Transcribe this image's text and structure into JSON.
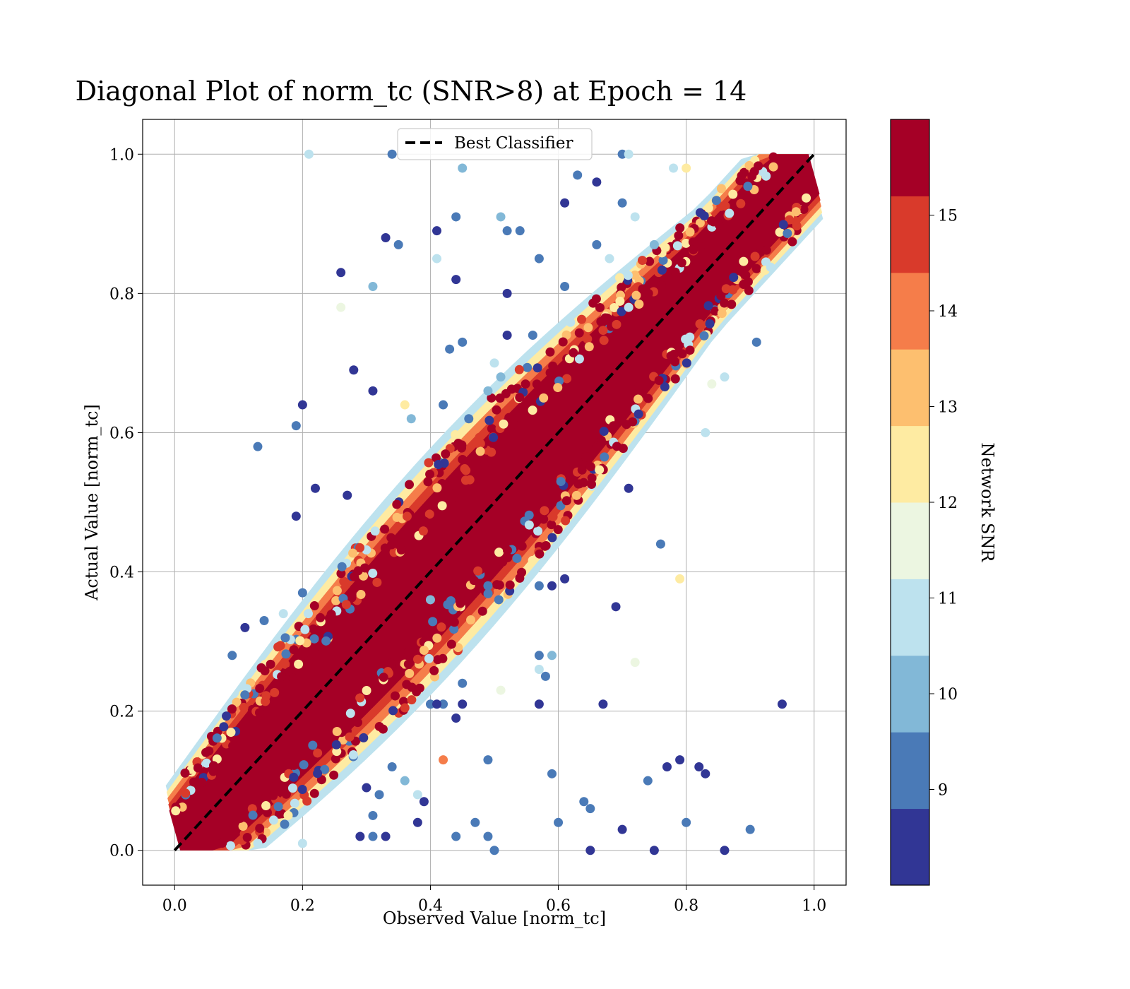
{
  "chart_data": {
    "type": "scatter",
    "title": "Diagonal Plot of norm_tc (SNR>8) at Epoch = 14",
    "xlabel": "Observed Value [norm_tc]",
    "ylabel": "Actual Value [norm_tc]",
    "xlim": [
      -0.05,
      1.05
    ],
    "ylim": [
      -0.05,
      1.05
    ],
    "xticks": [
      "0.0",
      "0.2",
      "0.4",
      "0.6",
      "0.8",
      "1.0"
    ],
    "yticks": [
      "0.0",
      "0.2",
      "0.4",
      "0.6",
      "0.8",
      "1.0"
    ],
    "xtick_values": [
      0.0,
      0.2,
      0.4,
      0.6,
      0.8,
      1.0
    ],
    "ytick_values": [
      0.0,
      0.2,
      0.4,
      0.6,
      0.8,
      1.0
    ],
    "grid": true,
    "legend": {
      "label": "Best Classifier",
      "placement": "upper center"
    },
    "reference_line": {
      "name": "Best Classifier",
      "x": [
        0.0,
        1.0
      ],
      "y": [
        0.0,
        1.0
      ],
      "style": "dashed",
      "color": "#000000"
    },
    "colorbar": {
      "label": "Network SNR",
      "range": [
        8,
        16
      ],
      "ticks": [
        "9",
        "10",
        "11",
        "12",
        "13",
        "14",
        "15"
      ],
      "tick_values": [
        9,
        10,
        11,
        12,
        13,
        14,
        15
      ],
      "colors": [
        "#313695",
        "#4a7ab7",
        "#82b8d7",
        "#bde2ee",
        "#ecf6e1",
        "#feeba2",
        "#fdbf6f",
        "#f57d4a",
        "#d93a2b",
        "#a50026"
      ]
    },
    "main_band": {
      "description": "dense cloud along y = x",
      "snr_dominant": 16
    },
    "outliers": [
      {
        "x": 0.21,
        "y": 1.0,
        "snr": 11
      },
      {
        "x": 0.34,
        "y": 1.0,
        "snr": 9
      },
      {
        "x": 0.45,
        "y": 0.98,
        "snr": 10
      },
      {
        "x": 0.44,
        "y": 0.91,
        "snr": 9
      },
      {
        "x": 0.41,
        "y": 0.89,
        "snr": 8.5
      },
      {
        "x": 0.33,
        "y": 0.88,
        "snr": 8.5
      },
      {
        "x": 0.35,
        "y": 0.87,
        "snr": 9
      },
      {
        "x": 0.26,
        "y": 0.83,
        "snr": 8.5
      },
      {
        "x": 0.31,
        "y": 0.81,
        "snr": 10
      },
      {
        "x": 0.41,
        "y": 0.85,
        "snr": 11
      },
      {
        "x": 0.44,
        "y": 0.82,
        "snr": 8.5
      },
      {
        "x": 0.51,
        "y": 0.91,
        "snr": 10
      },
      {
        "x": 0.52,
        "y": 0.89,
        "snr": 9
      },
      {
        "x": 0.54,
        "y": 0.89,
        "snr": 9
      },
      {
        "x": 0.57,
        "y": 0.85,
        "snr": 9
      },
      {
        "x": 0.52,
        "y": 0.8,
        "snr": 8.5
      },
      {
        "x": 0.61,
        "y": 0.93,
        "snr": 8.5
      },
      {
        "x": 0.63,
        "y": 0.97,
        "snr": 9
      },
      {
        "x": 0.66,
        "y": 0.96,
        "snr": 8.5
      },
      {
        "x": 0.26,
        "y": 0.78,
        "snr": 11.5
      },
      {
        "x": 0.45,
        "y": 0.73,
        "snr": 9
      },
      {
        "x": 0.43,
        "y": 0.72,
        "snr": 9
      },
      {
        "x": 0.28,
        "y": 0.69,
        "snr": 8.5
      },
      {
        "x": 0.31,
        "y": 0.66,
        "snr": 8.5
      },
      {
        "x": 0.2,
        "y": 0.64,
        "snr": 8.5
      },
      {
        "x": 0.19,
        "y": 0.61,
        "snr": 9
      },
      {
        "x": 0.13,
        "y": 0.58,
        "snr": 9
      },
      {
        "x": 0.22,
        "y": 0.52,
        "snr": 8.5
      },
      {
        "x": 0.19,
        "y": 0.48,
        "snr": 8.5
      },
      {
        "x": 0.27,
        "y": 0.51,
        "snr": 8.5
      },
      {
        "x": 0.36,
        "y": 0.64,
        "snr": 12.5
      },
      {
        "x": 0.37,
        "y": 0.62,
        "snr": 10
      },
      {
        "x": 0.42,
        "y": 0.64,
        "snr": 9
      },
      {
        "x": 0.71,
        "y": 0.52,
        "snr": 8.5
      },
      {
        "x": 0.76,
        "y": 0.44,
        "snr": 9
      },
      {
        "x": 0.83,
        "y": 0.6,
        "snr": 11
      },
      {
        "x": 0.79,
        "y": 0.39,
        "snr": 12.5
      },
      {
        "x": 0.69,
        "y": 0.35,
        "snr": 8.5
      },
      {
        "x": 0.61,
        "y": 0.39,
        "snr": 8.5
      },
      {
        "x": 0.59,
        "y": 0.38,
        "snr": 8.5
      },
      {
        "x": 0.57,
        "y": 0.38,
        "snr": 9
      },
      {
        "x": 0.72,
        "y": 0.27,
        "snr": 11.5
      },
      {
        "x": 0.57,
        "y": 0.28,
        "snr": 9
      },
      {
        "x": 0.59,
        "y": 0.28,
        "snr": 10
      },
      {
        "x": 0.58,
        "y": 0.25,
        "snr": 9
      },
      {
        "x": 0.57,
        "y": 0.26,
        "snr": 11
      },
      {
        "x": 0.51,
        "y": 0.23,
        "snr": 11.5
      },
      {
        "x": 0.57,
        "y": 0.21,
        "snr": 8.5
      },
      {
        "x": 0.67,
        "y": 0.21,
        "snr": 8.5
      },
      {
        "x": 0.95,
        "y": 0.21,
        "snr": 8.5
      },
      {
        "x": 0.42,
        "y": 0.21,
        "snr": 9
      },
      {
        "x": 0.45,
        "y": 0.24,
        "snr": 9
      },
      {
        "x": 0.4,
        "y": 0.21,
        "snr": 9
      },
      {
        "x": 0.41,
        "y": 0.21,
        "snr": 8.5
      },
      {
        "x": 0.44,
        "y": 0.19,
        "snr": 8.5
      },
      {
        "x": 0.45,
        "y": 0.21,
        "snr": 8.5
      },
      {
        "x": 0.42,
        "y": 0.13,
        "snr": 14
      },
      {
        "x": 0.49,
        "y": 0.13,
        "snr": 9
      },
      {
        "x": 0.59,
        "y": 0.11,
        "snr": 9
      },
      {
        "x": 0.74,
        "y": 0.1,
        "snr": 9
      },
      {
        "x": 0.77,
        "y": 0.12,
        "snr": 8.5
      },
      {
        "x": 0.79,
        "y": 0.13,
        "snr": 8.5
      },
      {
        "x": 0.82,
        "y": 0.12,
        "snr": 8.5
      },
      {
        "x": 0.83,
        "y": 0.11,
        "snr": 8.5
      },
      {
        "x": 0.64,
        "y": 0.07,
        "snr": 9
      },
      {
        "x": 0.65,
        "y": 0.06,
        "snr": 9
      },
      {
        "x": 0.6,
        "y": 0.04,
        "snr": 9
      },
      {
        "x": 0.7,
        "y": 0.03,
        "snr": 8.5
      },
      {
        "x": 0.8,
        "y": 0.04,
        "snr": 9
      },
      {
        "x": 0.9,
        "y": 0.03,
        "snr": 9
      },
      {
        "x": 0.65,
        "y": 0.0,
        "snr": 8.5
      },
      {
        "x": 0.75,
        "y": 0.0,
        "snr": 8.5
      },
      {
        "x": 0.86,
        "y": 0.0,
        "snr": 8.5
      },
      {
        "x": 0.5,
        "y": 0.0,
        "snr": 9
      },
      {
        "x": 0.49,
        "y": 0.02,
        "snr": 9
      },
      {
        "x": 0.47,
        "y": 0.04,
        "snr": 9
      },
      {
        "x": 0.44,
        "y": 0.02,
        "snr": 9
      },
      {
        "x": 0.39,
        "y": 0.07,
        "snr": 8.5
      },
      {
        "x": 0.38,
        "y": 0.08,
        "snr": 11
      },
      {
        "x": 0.38,
        "y": 0.04,
        "snr": 8.5
      },
      {
        "x": 0.33,
        "y": 0.02,
        "snr": 8.5
      },
      {
        "x": 0.31,
        "y": 0.02,
        "snr": 9
      },
      {
        "x": 0.31,
        "y": 0.05,
        "snr": 9
      },
      {
        "x": 0.29,
        "y": 0.02,
        "snr": 8.5
      },
      {
        "x": 0.2,
        "y": 0.01,
        "snr": 11
      },
      {
        "x": 0.13,
        "y": 0.01,
        "snr": 11
      },
      {
        "x": 0.34,
        "y": 0.12,
        "snr": 9
      },
      {
        "x": 0.36,
        "y": 0.1,
        "snr": 10
      },
      {
        "x": 0.32,
        "y": 0.08,
        "snr": 9
      },
      {
        "x": 0.3,
        "y": 0.09,
        "snr": 8.5
      },
      {
        "x": 0.14,
        "y": 0.33,
        "snr": 9
      },
      {
        "x": 0.11,
        "y": 0.32,
        "snr": 8.5
      },
      {
        "x": 0.09,
        "y": 0.28,
        "snr": 9
      },
      {
        "x": 0.17,
        "y": 0.34,
        "snr": 11
      },
      {
        "x": 0.2,
        "y": 0.37,
        "snr": 9
      },
      {
        "x": 0.49,
        "y": 0.38,
        "snr": 9
      },
      {
        "x": 0.4,
        "y": 0.36,
        "snr": 10
      },
      {
        "x": 0.71,
        "y": 0.78,
        "snr": 11
      },
      {
        "x": 0.75,
        "y": 0.87,
        "snr": 10
      },
      {
        "x": 0.72,
        "y": 0.91,
        "snr": 11
      },
      {
        "x": 0.78,
        "y": 0.98,
        "snr": 11
      },
      {
        "x": 0.7,
        "y": 1.0,
        "snr": 9
      },
      {
        "x": 0.71,
        "y": 1.0,
        "snr": 11
      },
      {
        "x": 0.8,
        "y": 0.98,
        "snr": 12.5
      },
      {
        "x": 0.84,
        "y": 0.67,
        "snr": 11.5
      },
      {
        "x": 0.91,
        "y": 0.73,
        "snr": 9
      },
      {
        "x": 0.86,
        "y": 0.68,
        "snr": 11
      },
      {
        "x": 0.51,
        "y": 0.68,
        "snr": 10
      },
      {
        "x": 0.46,
        "y": 0.62,
        "snr": 9
      },
      {
        "x": 0.49,
        "y": 0.66,
        "snr": 10
      },
      {
        "x": 0.5,
        "y": 0.7,
        "snr": 11
      },
      {
        "x": 0.52,
        "y": 0.74,
        "snr": 8.5
      },
      {
        "x": 0.56,
        "y": 0.74,
        "snr": 9
      },
      {
        "x": 0.61,
        "y": 0.81,
        "snr": 9
      },
      {
        "x": 0.66,
        "y": 0.87,
        "snr": 9
      },
      {
        "x": 0.68,
        "y": 0.85,
        "snr": 11
      },
      {
        "x": 0.7,
        "y": 0.93,
        "snr": 9
      }
    ]
  }
}
